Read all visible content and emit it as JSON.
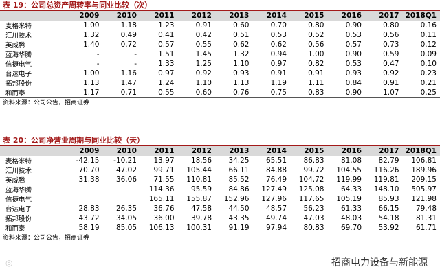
{
  "tables": [
    {
      "title": "表 19：公司总资产周转率与同业比较（次）",
      "header": [
        "2009",
        "2010",
        "2011",
        "2012",
        "2013",
        "2014",
        "2015",
        "2016",
        "2017",
        "2018Q1"
      ],
      "rows": [
        [
          "麦格米特",
          "1.00",
          "1.18",
          "1.23",
          "0.91",
          "0.60",
          "0.70",
          "0.80",
          "0.90",
          "0.80",
          "0.16"
        ],
        [
          "汇川技术",
          "1.32",
          "0.49",
          "0.41",
          "0.42",
          "0.51",
          "0.53",
          "0.52",
          "0.53",
          "0.56",
          "0.11"
        ],
        [
          "英威腾",
          "1.40",
          "0.72",
          "0.57",
          "0.55",
          "0.62",
          "0.62",
          "0.56",
          "0.57",
          "0.73",
          "0.12"
        ],
        [
          "蓝海华腾",
          "-",
          "-",
          "1.51",
          "1.45",
          "1.32",
          "0.94",
          "1.00",
          "0.90",
          "0.59",
          "0.09"
        ],
        [
          "信捷电气",
          "-",
          "-",
          "1.33",
          "1.25",
          "1.10",
          "0.97",
          "0.82",
          "0.53",
          "0.47",
          "0.10"
        ],
        [
          "台达电子",
          "1.00",
          "1.16",
          "0.97",
          "0.92",
          "0.93",
          "0.91",
          "0.91",
          "0.93",
          "0.92",
          "0.23"
        ],
        [
          "拓邦股份",
          "1.13",
          "1.47",
          "1.24",
          "1.10",
          "1.13",
          "1.19",
          "1.11",
          "0.84",
          "0.91",
          "0.21"
        ],
        [
          "和而泰",
          "1.17",
          "0.71",
          "0.55",
          "0.60",
          "0.76",
          "0.75",
          "0.83",
          "0.90",
          "1.07",
          "0.25"
        ]
      ],
      "source": "资料来源：公司公告，招商证券"
    },
    {
      "title": "表 20：公司净营业周期与同业比较（天）",
      "header": [
        "2009",
        "2010",
        "2011",
        "2012",
        "2013",
        "2014",
        "2015",
        "2016",
        "2017",
        "2018Q1"
      ],
      "rows": [
        [
          "麦格米特",
          "-42.15",
          "-10.21",
          "13.97",
          "18.56",
          "34.25",
          "65.51",
          "86.83",
          "81.08",
          "82.79",
          "106.81"
        ],
        [
          "汇川技术",
          "70.70",
          "47.02",
          "99.71",
          "105.44",
          "66.11",
          "84.88",
          "99.72",
          "104.55",
          "116.26",
          "189.96"
        ],
        [
          "英威腾",
          "31.38",
          "36.06",
          "71.55",
          "110.81",
          "85.52",
          "76.49",
          "104.72",
          "119.99",
          "119.81",
          "209.15"
        ],
        [
          "蓝海华腾",
          null,
          null,
          "114.36",
          "95.59",
          "84.86",
          "127.49",
          "125.08",
          "64.33",
          "148.10",
          "505.97"
        ],
        [
          "信捷电气",
          null,
          null,
          "165.11",
          "155.87",
          "152.96",
          "127.96",
          "117.65",
          "105.19",
          "85.93",
          "121.98"
        ],
        [
          "台达电子",
          "28.83",
          "26.35",
          "36.76",
          "47.58",
          "44.50",
          "48.57",
          "56.23",
          "61.33",
          "66.15",
          "79.48"
        ],
        [
          "拓邦股份",
          "43.72",
          "34.05",
          "36.00",
          "39.78",
          "43.35",
          "49.74",
          "47.03",
          "48.03",
          "54.18",
          "81.31"
        ],
        [
          "和而泰",
          "58.19",
          "85.05",
          "106.13",
          "100.31",
          "91.19",
          "97.94",
          "80.83",
          "69.70",
          "53.92",
          "61.71"
        ]
      ],
      "source": "资料来源：公司公告，招商证券"
    }
  ],
  "watermark": "招商电力设备与新能源"
}
